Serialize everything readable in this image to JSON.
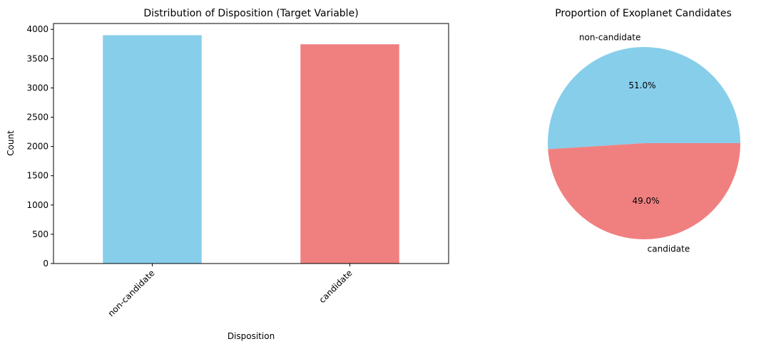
{
  "chart_data": [
    {
      "type": "bar",
      "title": "Distribution of Disposition (Target Variable)",
      "xlabel": "Disposition",
      "ylabel": "Count",
      "categories": [
        "non-candidate",
        "candidate"
      ],
      "values": [
        3900,
        3745
      ],
      "colors": [
        "#87CEEB",
        "#F08080"
      ],
      "ylim": [
        0,
        4100
      ],
      "yticks": [
        0,
        500,
        1000,
        1500,
        2000,
        2500,
        3000,
        3500,
        4000
      ],
      "grid": false,
      "xtick_rotation": 45
    },
    {
      "type": "pie",
      "title": "Proportion of Exoplanet Candidates",
      "labels": [
        "non-candidate",
        "candidate"
      ],
      "percentages": [
        51.0,
        49.0
      ],
      "percent_labels": [
        "51.0%",
        "49.0%"
      ],
      "colors": [
        "#87CEEB",
        "#F08080"
      ]
    }
  ]
}
